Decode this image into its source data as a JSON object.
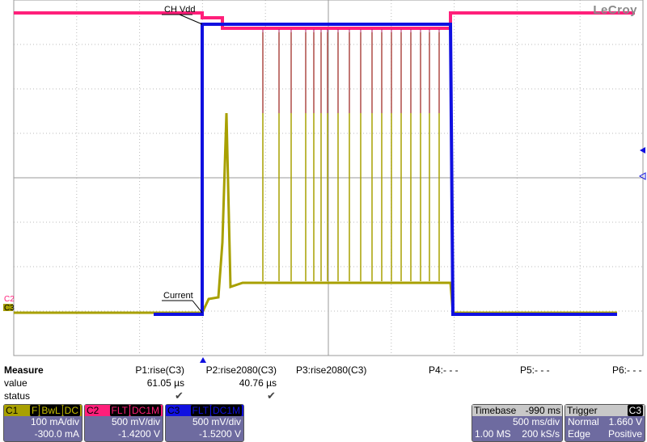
{
  "brand": "LeCroy",
  "annotations": {
    "ch_vdd": "CH Vdd",
    "current": "Current"
  },
  "markers": {
    "c2": "C2",
    "c3": "C3"
  },
  "colors": {
    "c1": "#a8a000",
    "c2": "#ff1f7a",
    "c3": "#1010e0",
    "panel": "#6e6ba0"
  },
  "measure": {
    "title": "Measure",
    "value_label": "value",
    "status_label": "status",
    "params": [
      {
        "name": "P1:rise(C3)",
        "value": "61.05 µs",
        "status": "✔"
      },
      {
        "name": "P2:rise2080(C3)",
        "value": "40.76 µs",
        "status": "✔"
      },
      {
        "name": "P3:rise2080(C3)",
        "value": "",
        "status": ""
      },
      {
        "name": "P4:- - -",
        "value": "",
        "status": ""
      },
      {
        "name": "P5:- - -",
        "value": "",
        "status": ""
      },
      {
        "name": "P6:- - -",
        "value": "",
        "status": ""
      }
    ]
  },
  "channels": [
    {
      "name": "C1",
      "tags": [
        "F",
        "BwL",
        "DC"
      ],
      "scale": "100 mA/div",
      "offset": "-300.0 mA"
    },
    {
      "name": "C2",
      "tags": [
        "FLT",
        "DC1M"
      ],
      "scale": "500 mV/div",
      "offset": "-1.4200 V"
    },
    {
      "name": "C3",
      "tags": [
        "FLT",
        "DC1M"
      ],
      "scale": "500 mV/div",
      "offset": "-1.5200 V"
    }
  ],
  "timebase": {
    "label": "Timebase",
    "delay": "-990 ms",
    "scale": "500 ms/div",
    "samples": "1.00 MS",
    "rate": "200 kS/s"
  },
  "trigger": {
    "label": "Trigger",
    "source": "C3",
    "mode": "Normal",
    "level": "1.660 V",
    "type": "Edge",
    "slope": "Positive"
  }
}
